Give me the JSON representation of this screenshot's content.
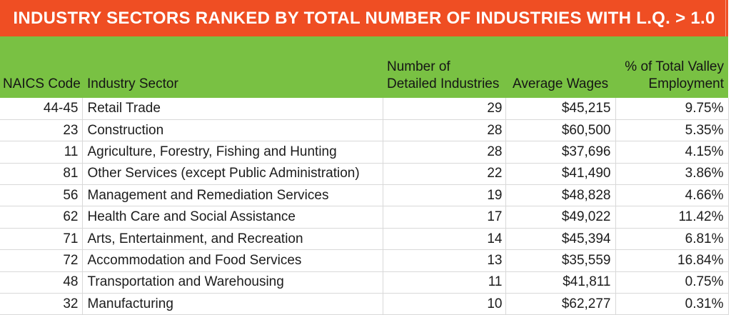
{
  "banner": {
    "title": "INDUSTRY SECTORS RANKED BY TOTAL NUMBER OF INDUSTRIES WITH L.Q. > 1.0"
  },
  "table": {
    "headers": {
      "naics": "NAICS Code",
      "sector": "Industry Sector",
      "industries": "Number of\nDetailed Industries",
      "wages": "Average Wages",
      "employment": "% of Total Valley\nEmployment"
    }
  },
  "chart_data": {
    "type": "table",
    "title": "INDUSTRY SECTORS RANKED BY TOTAL NUMBER OF INDUSTRIES WITH L.Q. > 1.0",
    "columns": [
      "NAICS Code",
      "Industry Sector",
      "Number of Detailed Industries",
      "Average Wages",
      "% of Total Valley Employment"
    ],
    "rows": [
      {
        "naics": "44-45",
        "sector": "Retail Trade",
        "industries": "29",
        "wages": "$45,215",
        "employment": "9.75%"
      },
      {
        "naics": "23",
        "sector": "Construction",
        "industries": "28",
        "wages": "$60,500",
        "employment": "5.35%"
      },
      {
        "naics": "11",
        "sector": "Agriculture, Forestry, Fishing and Hunting",
        "industries": "28",
        "wages": "$37,696",
        "employment": "4.15%"
      },
      {
        "naics": "81",
        "sector": "Other Services (except Public Administration)",
        "industries": "22",
        "wages": "$41,490",
        "employment": "3.86%"
      },
      {
        "naics": "56",
        "sector": "Management and Remediation Services",
        "industries": "19",
        "wages": "$48,828",
        "employment": "4.66%"
      },
      {
        "naics": "62",
        "sector": "Health Care and Social Assistance",
        "industries": "17",
        "wages": "$49,022",
        "employment": "11.42%"
      },
      {
        "naics": "71",
        "sector": "Arts, Entertainment, and Recreation",
        "industries": "14",
        "wages": "$45,394",
        "employment": "6.81%"
      },
      {
        "naics": "72",
        "sector": "Accommodation and Food Services",
        "industries": "13",
        "wages": "$35,559",
        "employment": "16.84%"
      },
      {
        "naics": "48",
        "sector": "Transportation and Warehousing",
        "industries": "11",
        "wages": "$41,811",
        "employment": "0.75%"
      },
      {
        "naics": "32",
        "sector": "Manufacturing",
        "industries": "10",
        "wages": "$62,277",
        "employment": "0.31%"
      }
    ]
  },
  "colors": {
    "banner_bg": "#EF4E23",
    "header_bg": "#79C143",
    "grid_line": "#D9D9D9",
    "title_text": "#FFFFFF",
    "header_text": "#151515",
    "body_text": "#1C1C1C"
  }
}
